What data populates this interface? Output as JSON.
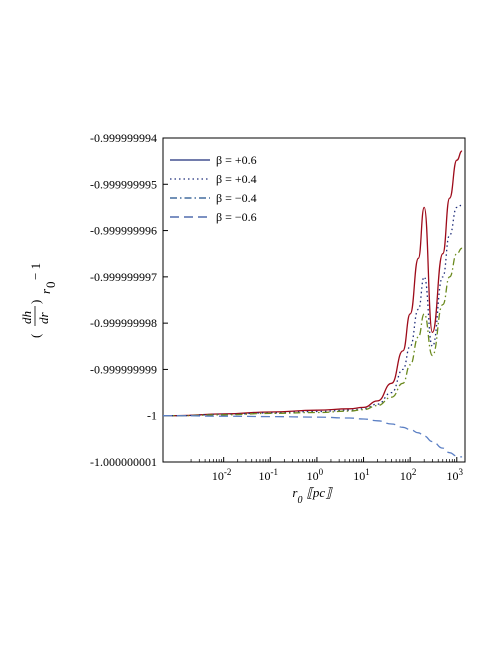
{
  "chart_data": {
    "type": "line",
    "xlabel": "r",
    "xlabel_sub": "0",
    "xlabel_unit": "⟦pc⟧",
    "ylabel": "(dh/dr)_{r_0} − 1",
    "ylabel_parts": {
      "num": "dh",
      "den": "dr",
      "sub": "r",
      "subsub": "0",
      "suffix": "− 1"
    },
    "x_scale": "log",
    "xlim": [
      0.0005,
      1500
    ],
    "ylim": [
      -1.000000001,
      -0.999999994
    ],
    "x_ticks": [
      {
        "value": 0.01,
        "base": "10",
        "exp": "-2"
      },
      {
        "value": 0.1,
        "base": "10",
        "exp": "-1"
      },
      {
        "value": 1,
        "base": "10",
        "exp": "0"
      },
      {
        "value": 10,
        "base": "10",
        "exp": "1"
      },
      {
        "value": 100,
        "base": "10",
        "exp": "2"
      },
      {
        "value": 1000,
        "base": "10",
        "exp": "3"
      }
    ],
    "y_ticks": [
      {
        "value": -0.999999994,
        "label": "-0.999999994"
      },
      {
        "value": -0.999999995,
        "label": "-0.999999995"
      },
      {
        "value": -0.999999996,
        "label": "-0.999999996"
      },
      {
        "value": -0.999999997,
        "label": "-0.999999997"
      },
      {
        "value": -0.999999998,
        "label": "-0.999999998"
      },
      {
        "value": -0.999999999,
        "label": "-0.999999999"
      },
      {
        "value": -1.0,
        "label": "-1"
      },
      {
        "value": -1.000000001,
        "label": "-1.000000001"
      }
    ],
    "legend_position": "top-left",
    "grid": false,
    "series": [
      {
        "name": "β = +0.6",
        "legend_color": "#1f2d7a",
        "line_color": "#9e0b1a",
        "dash": "solid",
        "x": [
          0.0005,
          0.001,
          0.01,
          0.1,
          1,
          5,
          10,
          20,
          40,
          70,
          100,
          150,
          200,
          300,
          500,
          700,
          1000,
          1300
        ],
        "y": [
          -1.0,
          -1.0,
          -0.99999999996,
          -0.99999999992,
          -0.99999999988,
          -0.99999999985,
          -0.99999999982,
          -0.99999999968,
          -0.9999999993,
          -0.9999999986,
          -0.9999999978,
          -0.9999999966,
          -0.9999999955,
          -0.9999999982,
          -0.9999999965,
          -0.9999999953,
          -0.99999999448,
          -0.99999999428
        ]
      },
      {
        "name": "β = +0.4",
        "legend_color": "#1f2d7a",
        "line_color": "#1f2d7a",
        "dash": "dotted",
        "x": [
          0.0005,
          0.001,
          0.01,
          0.1,
          1,
          5,
          10,
          20,
          40,
          70,
          100,
          150,
          200,
          300,
          500,
          700,
          1000,
          1300
        ],
        "y": [
          -1.0,
          -1.0,
          -0.99999999997,
          -0.99999999994,
          -0.99999999991,
          -0.99999999988,
          -0.99999999985,
          -0.99999999975,
          -0.9999999995,
          -0.999999999,
          -0.9999999985,
          -0.9999999977,
          -0.999999997,
          -0.9999999985,
          -0.999999997,
          -0.9999999961,
          -0.9999999955,
          -0.99999999545
        ]
      },
      {
        "name": "β = −0.4",
        "legend_color": "#1f4f8a",
        "line_color": "#6b8a1e",
        "dash": "dashdot",
        "x": [
          0.0005,
          0.001,
          0.01,
          0.1,
          1,
          5,
          10,
          20,
          40,
          70,
          100,
          150,
          200,
          300,
          500,
          700,
          1000,
          1300
        ],
        "y": [
          -1.0,
          -1.0,
          -0.99999999998,
          -0.99999999995,
          -0.99999999993,
          -0.9999999999,
          -0.99999999987,
          -0.99999999978,
          -0.9999999996,
          -0.9999999993,
          -0.9999999989,
          -0.9999999983,
          -0.9999999978,
          -0.9999999987,
          -0.9999999976,
          -0.999999997,
          -0.9999999965,
          -0.99999999638
        ]
      },
      {
        "name": "β = −0.6",
        "legend_color": "#2d4f9e",
        "line_color": "#5b7fc4",
        "dash": "dashed",
        "x": [
          0.0005,
          0.001,
          0.01,
          0.1,
          1,
          5,
          10,
          20,
          40,
          70,
          100,
          150,
          200,
          300,
          500,
          700,
          1000,
          1300
        ],
        "y": [
          -1.0,
          -1.0,
          -1.00000000001,
          -1.00000000002,
          -1.00000000003,
          -1.00000000005,
          -1.00000000007,
          -1.00000000011,
          -1.00000000018,
          -1.00000000025,
          -1.0000000003,
          -1.00000000037,
          -1.00000000044,
          -1.00000000056,
          -1.0000000007,
          -1.0000000008,
          -1.00000000087,
          -1.00000000089
        ]
      }
    ]
  }
}
